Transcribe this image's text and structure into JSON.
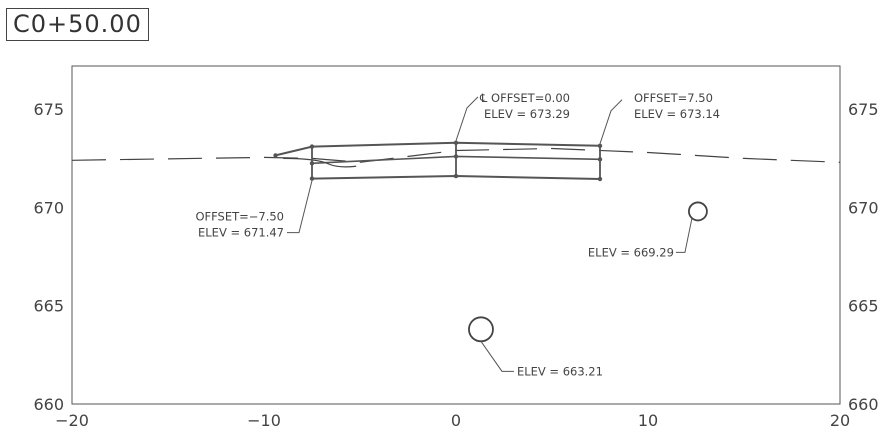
{
  "title": "C0+50.00",
  "chart_data": {
    "type": "cross-section",
    "xlim": [
      -20,
      20
    ],
    "ylim": [
      660,
      677.2
    ],
    "x_ticks": [
      -20,
      -10,
      0,
      10,
      20
    ],
    "y_ticks": [
      660,
      665,
      670,
      675
    ],
    "x_tick_labels": [
      "−20",
      "−10",
      "0",
      "10",
      "20"
    ],
    "y_tick_labels": [
      "660",
      "665",
      "670",
      "675"
    ],
    "ground_line": [
      [
        -20,
        672.4
      ],
      [
        -10,
        672.55
      ],
      [
        -7.5,
        672.5
      ],
      [
        -5,
        672.3
      ],
      [
        0,
        672.9
      ],
      [
        5,
        673.0
      ],
      [
        10,
        672.8
      ],
      [
        15,
        672.5
      ],
      [
        20,
        672.3
      ]
    ],
    "embankment": {
      "top": [
        [
          -9.4,
          672.65
        ],
        [
          -7.5,
          673.1
        ],
        [
          0,
          673.29
        ],
        [
          7.5,
          673.14
        ]
      ],
      "middle": [
        [
          -7.5,
          672.25
        ],
        [
          0,
          672.6
        ],
        [
          7.5,
          672.45
        ]
      ],
      "bottom": [
        [
          -7.5,
          671.47
        ],
        [
          0,
          671.6
        ],
        [
          7.5,
          671.45
        ]
      ],
      "verticals": [
        -7.5,
        0,
        7.5
      ]
    },
    "circles": [
      {
        "x": 12.6,
        "y": 669.8,
        "label": "ELEV = 669.29"
      },
      {
        "x": 1.3,
        "y": 663.8,
        "label": "ELEV = 663.21"
      }
    ],
    "annotations": [
      {
        "lines": [
          "℄ OFFSET=0.00",
          "ELEV = 673.29"
        ],
        "point": [
          0,
          673.29
        ]
      },
      {
        "lines": [
          "OFFSET=7.50",
          "ELEV = 673.14"
        ],
        "point": [
          7.5,
          673.14
        ]
      },
      {
        "lines": [
          "OFFSET=−7.50",
          "ELEV = 671.47"
        ],
        "point": [
          -7.5,
          671.47
        ]
      }
    ]
  }
}
